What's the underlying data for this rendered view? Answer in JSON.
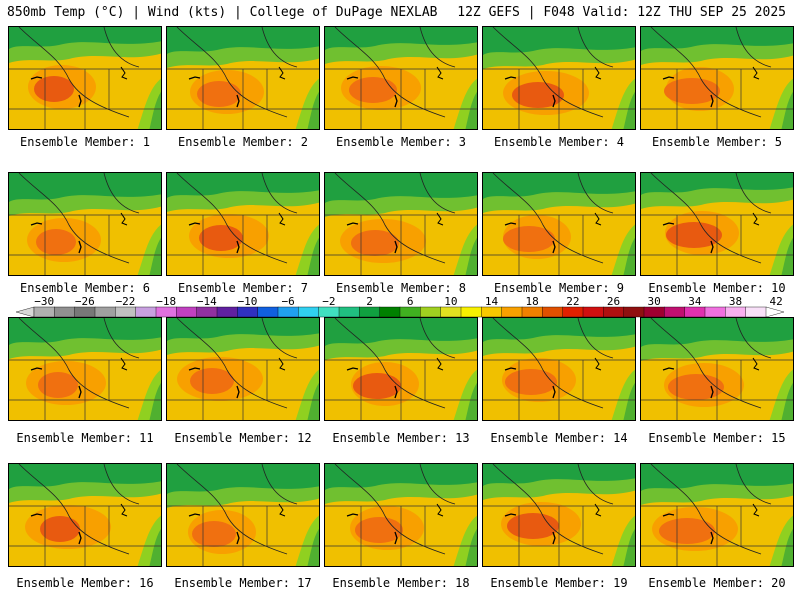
{
  "header": {
    "left": "850mb Temp (°C) | Wind (kts) | College of DuPage NEXLAB",
    "right": "12Z GEFS | F048 Valid: 12Z THU SEP 25 2025"
  },
  "panels": [
    {
      "label": "Ensemble Member: 1"
    },
    {
      "label": "Ensemble Member: 2"
    },
    {
      "label": "Ensemble Member: 3"
    },
    {
      "label": "Ensemble Member: 4"
    },
    {
      "label": "Ensemble Member: 5"
    },
    {
      "label": "Ensemble Member: 6"
    },
    {
      "label": "Ensemble Member: 7"
    },
    {
      "label": "Ensemble Member: 8"
    },
    {
      "label": "Ensemble Member: 9"
    },
    {
      "label": "Ensemble Member: 10"
    },
    {
      "label": "Ensemble Member: 11"
    },
    {
      "label": "Ensemble Member: 12"
    },
    {
      "label": "Ensemble Member: 13"
    },
    {
      "label": "Ensemble Member: 14"
    },
    {
      "label": "Ensemble Member: 15"
    },
    {
      "label": "Ensemble Member: 16"
    },
    {
      "label": "Ensemble Member: 17"
    },
    {
      "label": "Ensemble Member: 18"
    },
    {
      "label": "Ensemble Member: 19"
    },
    {
      "label": "Ensemble Member: 20"
    }
  ],
  "colorbar": {
    "units": "°C",
    "min": -32,
    "max": 44,
    "step": 2,
    "tick_labels": [
      "−30",
      "−26",
      "−22",
      "−18",
      "−14",
      "−10",
      "−6",
      "−2",
      "2",
      "6",
      "10",
      "14",
      "18",
      "22",
      "26",
      "30",
      "34",
      "38",
      "42"
    ],
    "colors": [
      "#d8d8d8",
      "#b0b0b0",
      "#909090",
      "#787878",
      "#a0a0a0",
      "#c0c0c0",
      "#c8a0e0",
      "#e070e0",
      "#c040c0",
      "#9030a0",
      "#6020a0",
      "#3030c0",
      "#1060e0",
      "#20a0f0",
      "#30d0f0",
      "#40e0c0",
      "#20c080",
      "#10a040",
      "#008000",
      "#40b020",
      "#a0d020",
      "#e0e020",
      "#f8f000",
      "#f8c800",
      "#f8a000",
      "#f08000",
      "#e05000",
      "#e02000",
      "#d01010",
      "#b01010",
      "#901010",
      "#a00030",
      "#c01070",
      "#e030b0",
      "#f070e0",
      "#f8b0f0",
      "#f8e0f8",
      "#ffffff"
    ]
  }
}
